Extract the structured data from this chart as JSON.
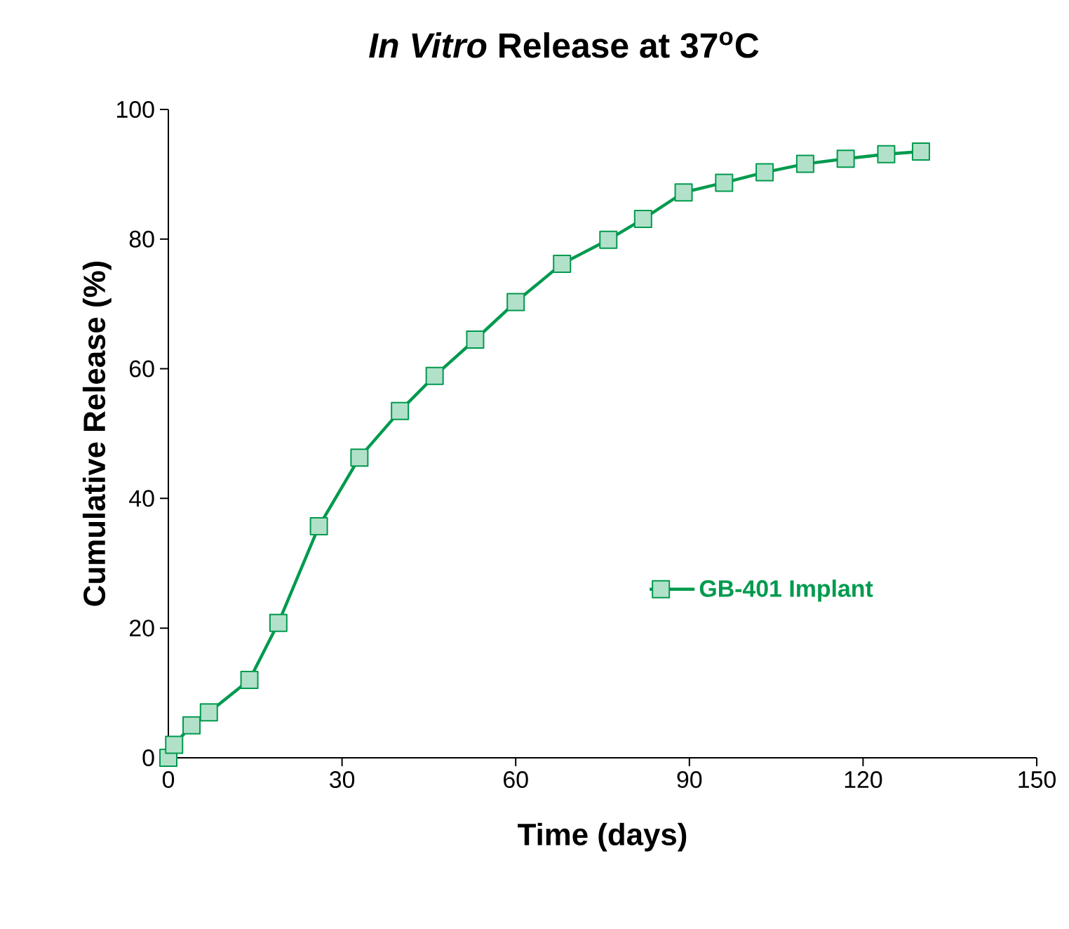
{
  "chart_data": {
    "type": "line",
    "title": "*In Vitro* Release at 37$^{o}$C",
    "xlabel": "Time (days)",
    "ylabel": "Cumulative Release (%)",
    "x": [
      0,
      1,
      4,
      7,
      14,
      19,
      26,
      33,
      40,
      46,
      53,
      60,
      68,
      76,
      82,
      89,
      96,
      103,
      110,
      117,
      124,
      130
    ],
    "series": [
      {
        "name": "GB-401 Implant",
        "color": "#009a4e",
        "values": [
          0,
          2,
          5,
          7,
          12,
          20.8,
          35.7,
          46.3,
          53.5,
          58.9,
          64.5,
          70.3,
          76.2,
          79.9,
          83.1,
          87.2,
          88.7,
          90.3,
          91.6,
          92.4,
          93.1,
          93.5
        ]
      }
    ],
    "xlim": [
      0,
      150
    ],
    "xticks": [
      0,
      30,
      60,
      90,
      120,
      150
    ],
    "ylim": [
      0,
      100
    ],
    "yticks": [
      0,
      20,
      40,
      60,
      80,
      100
    ],
    "grid": false,
    "legend": "right",
    "marker": "square",
    "line_style": "solid"
  }
}
